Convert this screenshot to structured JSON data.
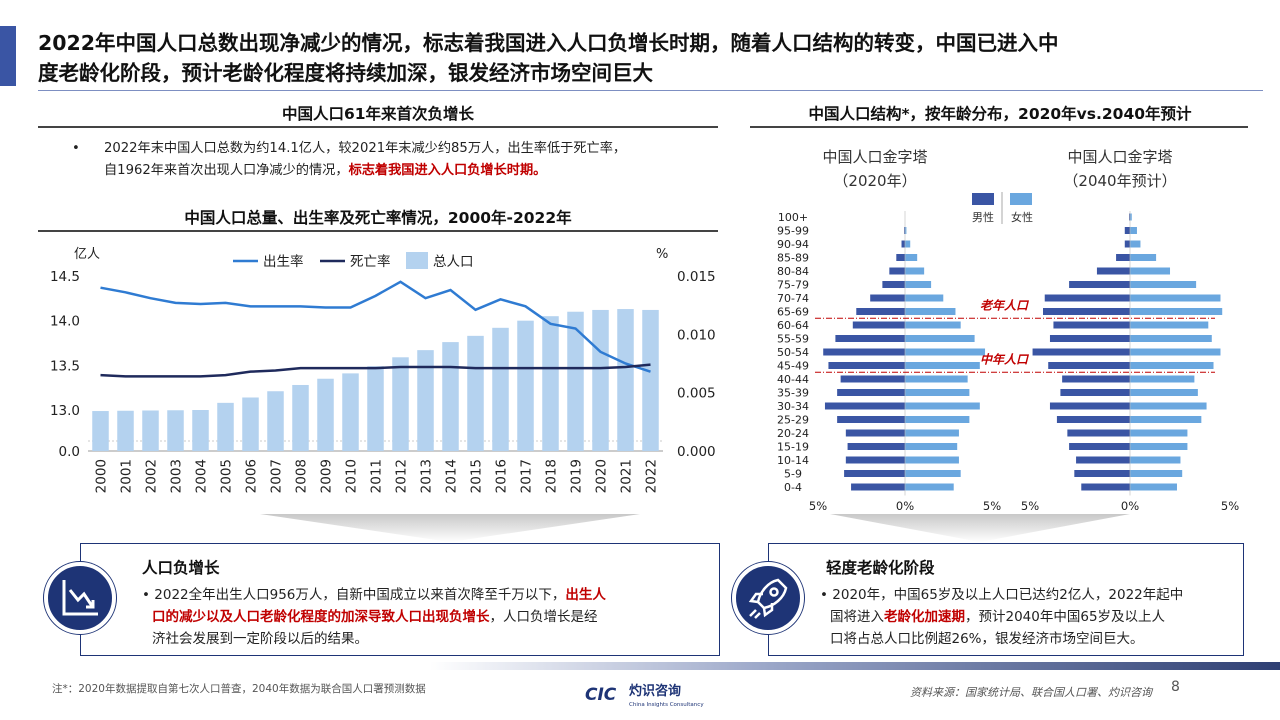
{
  "header": {
    "title_line1": "2022年中国人口总数出现净减少的情况，标志着我国进入人口负增长时期，随着人口结构的转变，中国已进入中",
    "title_line2": "度老龄化阶段，预计老龄化程度将持续加深，银发经济市场空间巨大"
  },
  "left_section": {
    "title": "中国人口61年来首次负增长",
    "bullet_marker": "•",
    "bullet_line1": "2022年末中国人口总数为约14.1亿人，较2021年末减少约85万人，出生率低于死亡率，",
    "bullet_line2_plain": "自1962年来首次出现人口净减少的情况，",
    "bullet_line2_red": "标志着我国进入人口负增长时期。"
  },
  "right_section": {
    "title": "中国人口结构*，按年龄分布，2020年vs.2040年预计"
  },
  "chart_data": [
    {
      "type": "bar+line",
      "title": "中国人口总量、出生率及死亡率情况，2000年-2022年",
      "left_unit": "亿人",
      "right_unit": "%",
      "categories": [
        "2000",
        "2001",
        "2002",
        "2003",
        "2004",
        "2005",
        "2006",
        "2007",
        "2008",
        "2009",
        "2010",
        "2011",
        "2012",
        "2013",
        "2014",
        "2015",
        "2016",
        "2017",
        "2018",
        "2019",
        "2020",
        "2021",
        "2022"
      ],
      "left_ticks": [
        "0.0",
        "13.0",
        "13.5",
        "14.0",
        "14.5"
      ],
      "right_ticks": [
        "0.000",
        "0.005",
        "0.010",
        "0.015"
      ],
      "legend": [
        "出生率",
        "死亡率",
        "总人口"
      ],
      "colors": {
        "birth": "#2f7bd2",
        "death": "#1f2a5c",
        "bar": "#b4d2ef"
      },
      "series": [
        {
          "name": "总人口",
          "kind": "bar",
          "values": [
            12.67,
            12.76,
            12.85,
            12.92,
            13.0,
            13.08,
            13.14,
            13.21,
            13.28,
            13.35,
            13.41,
            13.49,
            13.59,
            13.67,
            13.76,
            13.83,
            13.92,
            14.0,
            14.05,
            14.1,
            14.12,
            14.13,
            14.12
          ]
        },
        {
          "name": "出生率",
          "kind": "line",
          "values": [
            0.014,
            0.0136,
            0.0131,
            0.0127,
            0.0126,
            0.0127,
            0.0124,
            0.0124,
            0.0124,
            0.0123,
            0.0123,
            0.0133,
            0.0145,
            0.0131,
            0.0138,
            0.0121,
            0.013,
            0.0124,
            0.0109,
            0.0105,
            0.0085,
            0.0075,
            0.0068
          ]
        },
        {
          "name": "死亡率",
          "kind": "line",
          "values": [
            0.0065,
            0.0064,
            0.0064,
            0.0064,
            0.0064,
            0.0065,
            0.0068,
            0.0069,
            0.0071,
            0.0071,
            0.0071,
            0.0071,
            0.0072,
            0.0072,
            0.0072,
            0.0071,
            0.0071,
            0.0071,
            0.0071,
            0.0071,
            0.0071,
            0.0072,
            0.0074
          ]
        }
      ]
    },
    {
      "type": "population-pyramid",
      "titles": [
        "中国人口金字塔",
        "（2020年）",
        "中国人口金字塔",
        "（2040年预计）"
      ],
      "legend": [
        "男性",
        "女性"
      ],
      "colors": {
        "male": "#3a55a4",
        "female": "#6aa7df",
        "line": "#c00000"
      },
      "age_groups": [
        "100+",
        "95-99",
        "90-94",
        "85-89",
        "80-84",
        "75-79",
        "70-74",
        "65-69",
        "60-64",
        "55-59",
        "50-54",
        "45-49",
        "40-44",
        "35-39",
        "30-34",
        "25-29",
        "20-24",
        "15-19",
        "10-14",
        "5-9",
        "0-4"
      ],
      "axis_labels": [
        "5%",
        "0%",
        "5%",
        "5%",
        "0%",
        "5%"
      ],
      "annotations": [
        "老年人口",
        "中年人口"
      ],
      "pyramid_2020": {
        "male": [
          0.0,
          0.05,
          0.2,
          0.5,
          0.9,
          1.3,
          2.0,
          2.8,
          3.0,
          4.0,
          4.7,
          4.4,
          3.7,
          3.9,
          4.6,
          3.9,
          3.4,
          3.3,
          3.4,
          3.5,
          3.1
        ],
        "female": [
          0.0,
          0.08,
          0.3,
          0.7,
          1.1,
          1.5,
          2.2,
          2.9,
          3.2,
          4.0,
          4.6,
          4.3,
          3.6,
          3.7,
          4.3,
          3.7,
          3.1,
          3.0,
          3.1,
          3.2,
          2.8
        ]
      },
      "pyramid_2040": {
        "male": [
          0.05,
          0.3,
          0.3,
          0.8,
          1.9,
          3.5,
          4.9,
          5.0,
          4.4,
          4.6,
          5.6,
          4.7,
          3.9,
          4.0,
          4.6,
          4.2,
          3.6,
          3.5,
          3.1,
          3.2,
          2.8
        ],
        "female": [
          0.1,
          0.4,
          0.6,
          1.5,
          2.3,
          3.8,
          5.2,
          5.3,
          4.5,
          4.7,
          5.2,
          4.8,
          3.7,
          3.9,
          4.4,
          4.1,
          3.3,
          3.3,
          2.9,
          3.0,
          2.7
        ]
      }
    }
  ],
  "cards": {
    "left": {
      "title": "人口负增长",
      "text_line1_plain": "2022全年出生人口956万人，自新中国成立以来首次降至千万以下，",
      "text_line1_red": "出生人",
      "text_line2_red": "口的减少以及人口老龄化程度的加深导致人口出现负增长",
      "text_line2_plain": "，人口负增长是经",
      "text_line3": "济社会发展到一定阶段以后的结果。"
    },
    "right": {
      "title": "轻度老龄化阶段",
      "text_line1": "2020年，中国65岁及以上人口已达约2亿人，2022年起中",
      "text_line2_plain_a": "国将进入",
      "text_line2_red": "老龄化加速期",
      "text_line2_plain_b": "，预计2040年中国65岁及以上人",
      "text_line3": "口将占总人口比例超26%，银发经济市场空间巨大。"
    }
  },
  "footer": {
    "note": "注*：2020年数据提取自第七次人口普查，2040年数据为联合国人口署预测数据",
    "source": "资料来源：国家统计局、联合国人口署、灼识咨询",
    "page_number": "8",
    "logo_mark": "CIC",
    "logo_cn": "灼识咨询",
    "logo_en": "China Insights Consultancy"
  }
}
